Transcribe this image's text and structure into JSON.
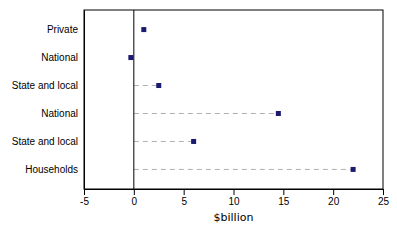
{
  "chart_data": {
    "type": "dot",
    "orientation": "horizontal",
    "categories": [
      "Private",
      "National",
      "State and local",
      "National",
      "State and local",
      "Households"
    ],
    "series": [
      {
        "type": "scatter",
        "marker": "square",
        "color": "#1a1a6e",
        "values": [
          1.0,
          -0.3,
          2.5,
          14.5,
          6.0,
          22.0
        ]
      },
      {
        "type": "bar",
        "line_style": "dashed",
        "color": "#b0b0b0",
        "values": [
          null,
          null,
          2.5,
          14.5,
          6.0,
          22.0
        ]
      }
    ],
    "xlabel": "$billion",
    "xlim": [
      -5,
      25
    ],
    "xticks": [
      -5,
      0,
      5,
      10,
      15,
      20,
      25
    ],
    "grid": false
  }
}
